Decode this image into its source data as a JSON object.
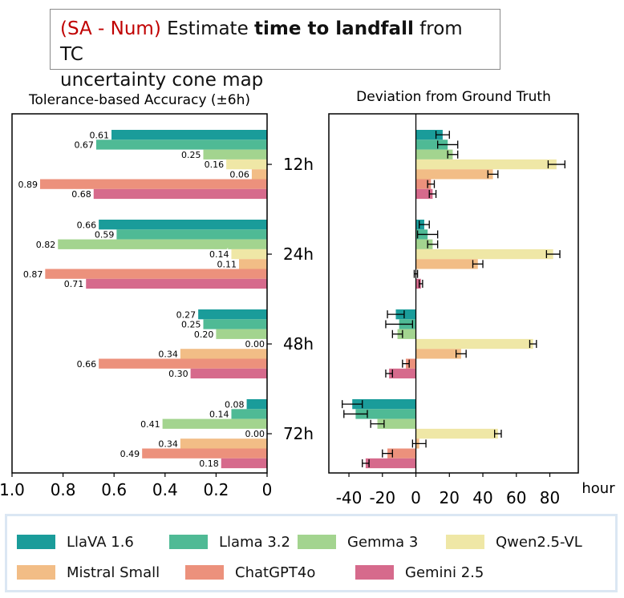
{
  "title": {
    "tag": "(SA - Num)",
    "part1": " Estimate ",
    "bold": "time to landfall",
    "part2": " from TC",
    "line2": "uncertainty cone map"
  },
  "colors": {
    "LlaVA 1.6": "#1a9c9a",
    "Llama 3.2": "#4fba95",
    "Gemma 3": "#a3d48f",
    "Qwen2.5-VL": "#efe7a6",
    "Mistral Small": "#f2bd86",
    "ChatGPT4o": "#ec917c",
    "Gemini 2.5": "#d66a8c"
  },
  "chart_data": [
    {
      "type": "bar",
      "orientation": "horizontal",
      "title": "Tolerance-based Accuracy (±6h)",
      "xlabel": "",
      "xlim": [
        1.0,
        0
      ],
      "x_inverted": true,
      "xticks": [
        "1.0",
        "0.8",
        "0.6",
        "0.4",
        "0.2",
        "0"
      ],
      "categories": [
        "12h",
        "24h",
        "48h",
        "72h"
      ],
      "series": [
        {
          "name": "LlaVA 1.6",
          "values": [
            0.61,
            0.66,
            0.27,
            0.08
          ],
          "labels": [
            "0.61",
            "0.66",
            "0.27",
            "0.08"
          ]
        },
        {
          "name": "Llama 3.2",
          "values": [
            0.67,
            0.59,
            0.25,
            0.14
          ],
          "labels": [
            "0.67",
            "0.59",
            "0.25",
            "0.14"
          ]
        },
        {
          "name": "Gemma 3",
          "values": [
            0.25,
            0.82,
            0.2,
            0.41
          ],
          "labels": [
            "0.25",
            "0.82",
            "0.20",
            "0.41"
          ]
        },
        {
          "name": "Qwen2.5-VL",
          "values": [
            0.16,
            0.14,
            0.0,
            0.0
          ],
          "labels": [
            "0.16",
            "0.14",
            "0.00",
            "0.00"
          ]
        },
        {
          "name": "Mistral Small",
          "values": [
            0.06,
            0.11,
            0.34,
            0.34
          ],
          "labels": [
            "0.06",
            "0.11",
            "0.34",
            "0.34"
          ]
        },
        {
          "name": "ChatGPT4o",
          "values": [
            0.89,
            0.87,
            0.66,
            0.49
          ],
          "labels": [
            "0.89",
            "0.87",
            "0.66",
            "0.49"
          ]
        },
        {
          "name": "Gemini 2.5",
          "values": [
            0.68,
            0.71,
            0.3,
            0.18
          ],
          "labels": [
            "0.68",
            "0.71",
            "0.30",
            "0.18"
          ]
        }
      ]
    },
    {
      "type": "bar",
      "orientation": "horizontal",
      "title": "Deviation from Ground Truth",
      "xlabel": "hour",
      "xlim": [
        -52,
        97
      ],
      "xticks": [
        "-40",
        "-20",
        "0",
        "20",
        "40",
        "60",
        "80"
      ],
      "xtick_values": [
        -40,
        -20,
        0,
        20,
        40,
        60,
        80
      ],
      "categories": [
        "12h",
        "24h",
        "48h",
        "72h"
      ],
      "series": [
        {
          "name": "LlaVA 1.6",
          "values": [
            16,
            5,
            -12,
            -38
          ],
          "errors": [
            4,
            3,
            5,
            6
          ]
        },
        {
          "name": "Llama 3.2",
          "values": [
            19,
            7,
            -10,
            -36
          ],
          "errors": [
            6,
            6,
            8,
            7
          ]
        },
        {
          "name": "Gemma 3",
          "values": [
            22,
            10,
            -11,
            -23
          ],
          "errors": [
            3,
            3,
            3,
            4
          ]
        },
        {
          "name": "Qwen2.5-VL",
          "values": [
            84,
            82,
            70,
            49
          ],
          "errors": [
            5,
            4,
            2,
            2
          ]
        },
        {
          "name": "Mistral Small",
          "values": [
            46,
            37,
            27,
            2
          ],
          "errors": [
            3,
            3,
            3,
            4
          ]
        },
        {
          "name": "ChatGPT4o",
          "values": [
            9,
            0,
            -6,
            -17
          ],
          "errors": [
            2,
            1,
            2,
            3
          ]
        },
        {
          "name": "Gemini 2.5",
          "values": [
            10,
            3,
            -16,
            -30
          ],
          "errors": [
            2,
            1,
            2,
            2
          ]
        }
      ]
    }
  ],
  "legend": [
    "LlaVA 1.6",
    "Llama 3.2",
    "Gemma 3",
    "Qwen2.5-VL",
    "Mistral Small",
    "ChatGPT4o",
    "Gemini 2.5"
  ]
}
